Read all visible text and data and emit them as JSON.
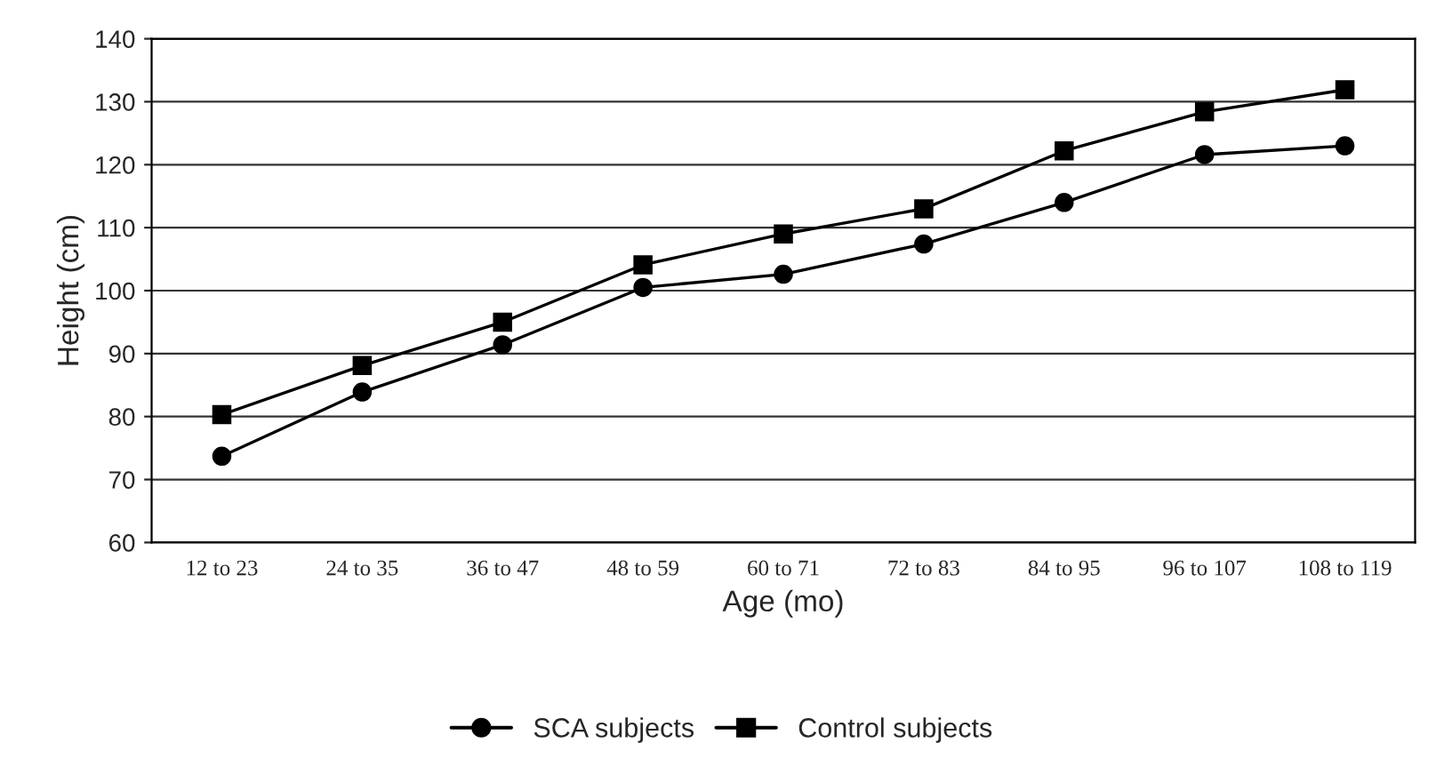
{
  "chart_data": {
    "type": "line",
    "xlabel": "Age (mo)",
    "ylabel": "Height (cm)",
    "categories": [
      "12 to 23",
      "24 to 35",
      "36 to 47",
      "48 to 59",
      "60 to 71",
      "72 to 83",
      "84 to 95",
      "96 to 107",
      "108 to 119"
    ],
    "series": [
      {
        "name": "SCA subjects",
        "color": "#000000",
        "marker": "circle",
        "values": [
          73.7,
          83.9,
          91.4,
          100.5,
          102.6,
          107.4,
          114,
          121.6,
          123
        ]
      },
      {
        "name": "Control subjects",
        "color": "#000000",
        "marker": "square",
        "values": [
          80.3,
          88.1,
          95,
          104.1,
          109,
          113,
          122.2,
          128.4,
          131.9
        ]
      }
    ],
    "ylim": [
      60,
      140
    ],
    "yticks": [
      60,
      70,
      80,
      90,
      100,
      110,
      120,
      130,
      140
    ],
    "grid": "y",
    "legend": "bottom",
    "line_style": "solid"
  }
}
